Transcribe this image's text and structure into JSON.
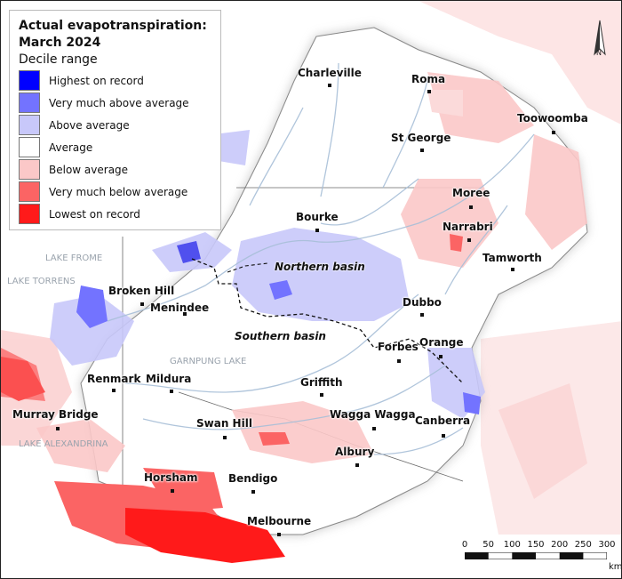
{
  "legend": {
    "title_line1": "Actual evapotranspiration:",
    "title_line2": "March 2024",
    "subtitle": "Decile range",
    "items": [
      {
        "label": "Highest on record",
        "color": "#0000ff"
      },
      {
        "label": "Very much above average",
        "color": "#7373ff"
      },
      {
        "label": "Above average",
        "color": "#c8c8fa"
      },
      {
        "label": "Average",
        "color": "#ffffff"
      },
      {
        "label": "Below average",
        "color": "#fbc8c8"
      },
      {
        "label": "Very much below average",
        "color": "#fb6464"
      },
      {
        "label": "Lowest on record",
        "color": "#ff1a1a"
      }
    ]
  },
  "towns": [
    "Charleville",
    "Roma",
    "Toowoomba",
    "St George",
    "Moree",
    "Bourke",
    "Narrabri",
    "Tamworth",
    "Broken Hill",
    "Menindee",
    "Dubbo",
    "Orange",
    "Forbes",
    "Griffith",
    "Renmark",
    "Mildura",
    "Murray Bridge",
    "Swan Hill",
    "Wagga Wagga",
    "Canberra",
    "Albury",
    "Horsham",
    "Bendigo",
    "Melbourne"
  ],
  "basins": [
    "Northern basin",
    "Southern basin"
  ],
  "lakes": [
    "LAKE FROME",
    "LAKE TORRENS",
    "GARNPUNG LAKE",
    "LAKE ALEXANDRINA"
  ],
  "scale": {
    "ticks": [
      "0",
      "50",
      "100",
      "150",
      "200",
      "250",
      "300"
    ],
    "unit": "km"
  },
  "north": "N"
}
